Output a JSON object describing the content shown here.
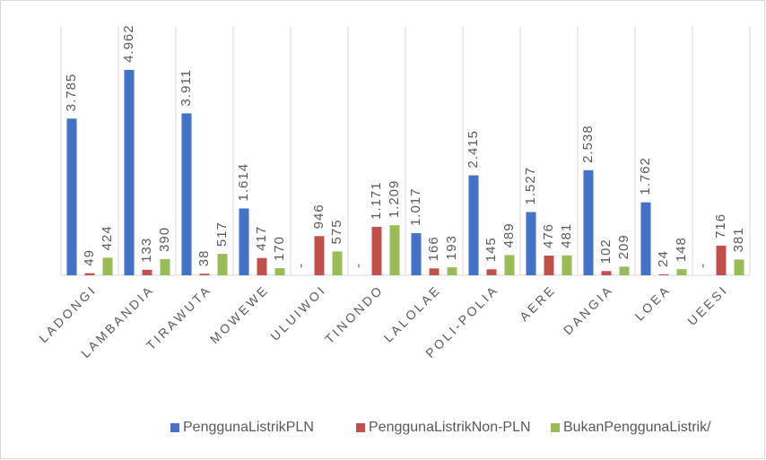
{
  "chart_data": {
    "type": "bar",
    "categories": [
      "LADONGI",
      "LAMBANDIA",
      "TIRAWUTA",
      "MOWEWE",
      "ULUIWOI",
      "TINONDO",
      "LALOLAE",
      "POLI-POLIA",
      "AERE",
      "DANGIA",
      "LOEA",
      "UEESI"
    ],
    "series": [
      {
        "name": "PenggunaListrikPLN",
        "color": "#4472c4",
        "values": [
          3785,
          4962,
          3911,
          1614,
          0,
          0,
          1017,
          2415,
          1527,
          2538,
          1762,
          0
        ],
        "value_labels": [
          "3.785",
          "4.962",
          "3.911",
          "1.614",
          "-",
          "-",
          "1.017",
          "2.415",
          "1.527",
          "2.538",
          "1.762",
          "-"
        ]
      },
      {
        "name": "PenggunaListrikNon-PLN",
        "color": "#c0504d",
        "values": [
          49,
          133,
          38,
          417,
          946,
          1171,
          166,
          145,
          476,
          102,
          24,
          716
        ],
        "value_labels": [
          "49",
          "133",
          "38",
          "417",
          "946",
          "1.171",
          "166",
          "145",
          "476",
          "102",
          "24",
          "716"
        ]
      },
      {
        "name": "BukanPenggunaListrik/",
        "color": "#9bbb59",
        "values": [
          424,
          390,
          517,
          170,
          575,
          1209,
          193,
          489,
          481,
          209,
          148,
          381
        ],
        "value_labels": [
          "424",
          "390",
          "517",
          "170",
          "575",
          "1.209",
          "193",
          "489",
          "481",
          "209",
          "148",
          "381"
        ]
      }
    ],
    "ylim": [
      0,
      6000
    ],
    "legend": "bottom"
  }
}
